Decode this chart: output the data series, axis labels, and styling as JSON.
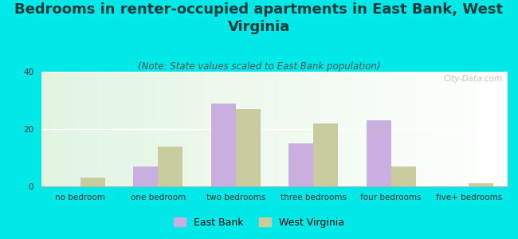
{
  "title": "Bedrooms in renter-occupied apartments in East Bank, West\nVirginia",
  "subtitle": "(Note: State values scaled to East Bank population)",
  "categories": [
    "no bedroom",
    "one bedroom",
    "two bedrooms",
    "three bedrooms",
    "four bedrooms",
    "five+ bedrooms"
  ],
  "east_bank": [
    0,
    7,
    29,
    15,
    23,
    0
  ],
  "west_virginia": [
    3,
    14,
    27,
    22,
    7,
    1
  ],
  "east_bank_color": "#c9aee0",
  "west_virginia_color": "#c8cc9f",
  "background_color": "#00e8e8",
  "ylim": [
    0,
    40
  ],
  "yticks": [
    0,
    20,
    40
  ],
  "bar_width": 0.32,
  "watermark": "City-Data.com",
  "title_fontsize": 13,
  "subtitle_fontsize": 8.5,
  "tick_fontsize": 7.5,
  "legend_fontsize": 9
}
